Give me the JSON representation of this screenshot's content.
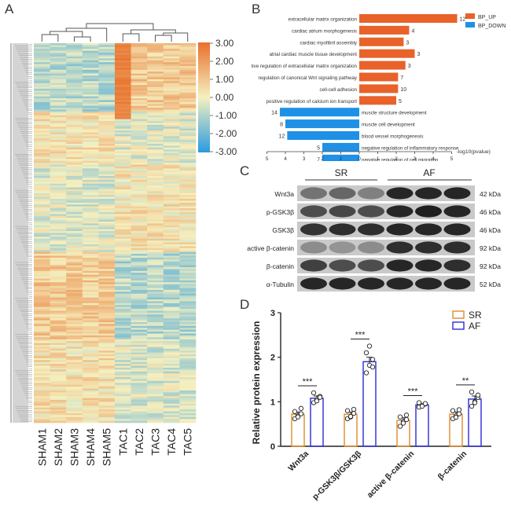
{
  "panels": {
    "A": "A",
    "B": "B",
    "C": "C",
    "D": "D"
  },
  "chart_data": [
    {
      "type": "heatmap",
      "panel": "A",
      "columns": [
        "SHAM1",
        "SHAM2",
        "SHAM3",
        "SHAM4",
        "SHAM5",
        "TAC1",
        "TAC2",
        "TAC3",
        "TAC4",
        "TAC5"
      ],
      "colorbar": {
        "ticks": [
          "3.00",
          "2.00",
          "1.00",
          "0.00",
          "-1.00",
          "-2.00",
          "-3.00"
        ],
        "min": -3,
        "max": 3,
        "colors": [
          "#2a9be0",
          "#f5f0c0",
          "#e8702a"
        ]
      },
      "row_dendrogram": true,
      "column_dendrogram": true
    },
    {
      "type": "bar",
      "panel": "B",
      "orientation": "horizontal",
      "xlabel": "-log10(pvalue)",
      "xticks": [
        "5",
        "4",
        "3",
        "2",
        "1",
        "0",
        "1",
        "2",
        "3",
        "4",
        "5"
      ],
      "legend": [
        "BP_UP",
        "BP_DOWN"
      ],
      "legend_colors": [
        "#e8622a",
        "#1e90e6"
      ],
      "up": [
        {
          "term": "extracellular matrix organization",
          "value": 5.3,
          "count": "12"
        },
        {
          "term": "cardiac atrium morphogenesis",
          "value": 2.7,
          "count": "4"
        },
        {
          "term": "cardiac myofibril assembly",
          "value": 2.4,
          "count": "3"
        },
        {
          "term": "atrial cardiac muscle tissue development",
          "value": 3.0,
          "count": "3"
        },
        {
          "term": "positive regulation of extracellular matrix organization",
          "value": 2.5,
          "count": "3"
        },
        {
          "term": "regulation of canonical Wnt signaling pathway",
          "value": 2.1,
          "count": "7"
        },
        {
          "term": "cell-cell adhesion",
          "value": 2.1,
          "count": "10"
        },
        {
          "term": "positive regulation of calcium ion transport",
          "value": 2.0,
          "count": "5"
        }
      ],
      "down": [
        {
          "term": "muscle structure development",
          "value": 4.3,
          "count": "14"
        },
        {
          "term": "muscle cell development",
          "value": 4.0,
          "count": "8"
        },
        {
          "term": "blood vessel morphogenesis",
          "value": 3.9,
          "count": "12"
        },
        {
          "term": "negative regulation of inflammatory response",
          "value": 2.0,
          "count": "5"
        },
        {
          "term": "negative regulation of cell migration",
          "value": 2.0,
          "count": "7"
        }
      ]
    },
    {
      "type": "table",
      "panel": "C",
      "groups": [
        "SR",
        "AF"
      ],
      "rows": [
        {
          "protein": "Wnt3a",
          "size": "42 kDa"
        },
        {
          "protein": "p-GSK3β",
          "size": "46 kDa"
        },
        {
          "protein": "GSK3β",
          "size": "46 kDa"
        },
        {
          "protein": "active β-catenin",
          "size": "92 kDa"
        },
        {
          "protein": "β-catenin",
          "size": "92 kDa"
        },
        {
          "protein": "α-Tubulin",
          "size": "52 kDa"
        }
      ]
    },
    {
      "type": "bar",
      "panel": "D",
      "ylabel": "Relative protein expression",
      "ylim": [
        0,
        3
      ],
      "yticks": [
        "0",
        "1",
        "2",
        "3"
      ],
      "categories": [
        "Wnt3a",
        "p-GSK3β/GSK3β",
        "active β-catenin",
        "β-catenin"
      ],
      "series": [
        {
          "name": "SR",
          "color": "#e08a2a",
          "values": [
            0.72,
            0.72,
            0.58,
            0.72
          ],
          "err": [
            0.05,
            0.05,
            0.06,
            0.05
          ],
          "points": [
            [
              0.62,
              0.68,
              0.73,
              0.78,
              0.66,
              0.85
            ],
            [
              0.62,
              0.66,
              0.74,
              0.8,
              0.67,
              0.83
            ],
            [
              0.45,
              0.55,
              0.6,
              0.66,
              0.52,
              0.7
            ],
            [
              0.62,
              0.68,
              0.73,
              0.8,
              0.65,
              0.82
            ]
          ]
        },
        {
          "name": "AF",
          "color": "#2a2ad8",
          "values": [
            1.08,
            1.9,
            0.93,
            1.06
          ],
          "err": [
            0.05,
            0.1,
            0.03,
            0.07
          ],
          "points": [
            [
              0.98,
              1.05,
              1.12,
              1.2,
              1.02,
              1.1
            ],
            [
              1.65,
              1.82,
              1.95,
              2.1,
              2.25,
              1.78
            ],
            [
              0.88,
              0.92,
              0.95,
              0.98,
              0.9,
              0.96
            ],
            [
              0.9,
              1.0,
              1.1,
              1.22,
              0.98,
              1.15
            ]
          ]
        }
      ],
      "significance": [
        "***",
        "***",
        "***",
        "**"
      ]
    }
  ]
}
